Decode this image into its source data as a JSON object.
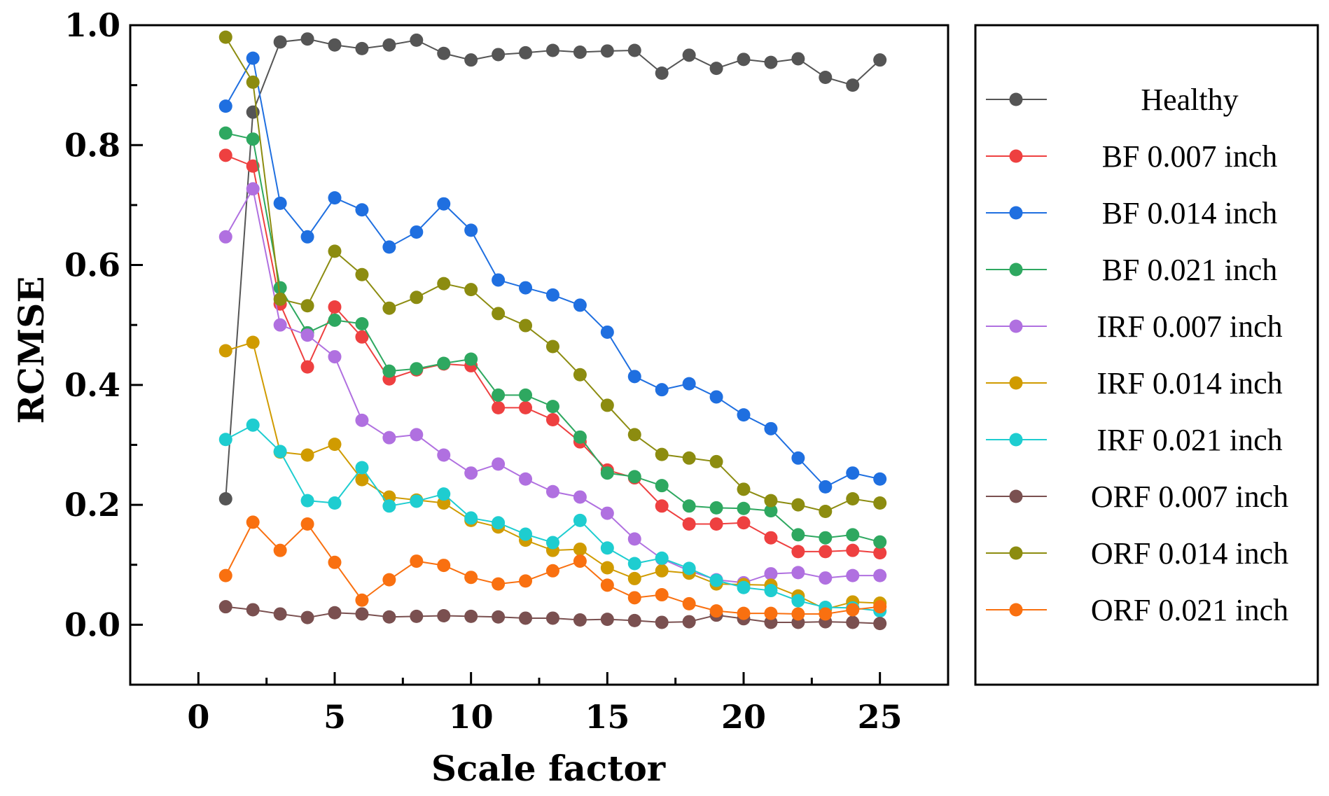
{
  "chart_data": {
    "type": "line",
    "title": "",
    "xlabel": "Scale factor",
    "ylabel": "RCMSE",
    "xlim": [
      -2.5,
      27.5
    ],
    "ylim": [
      -0.1,
      1.0
    ],
    "xticks": [
      0,
      5,
      10,
      15,
      20,
      25
    ],
    "yticks": [
      0.0,
      0.2,
      0.4,
      0.6,
      0.8,
      1.0
    ],
    "xtick_labels": [
      "0",
      "5",
      "10",
      "15",
      "20",
      "25"
    ],
    "ytick_labels": [
      "0.0",
      "0.2",
      "0.4",
      "0.6",
      "0.8",
      "1.0"
    ],
    "legend_position": "right",
    "grid": false,
    "x": [
      1,
      2,
      3,
      4,
      5,
      6,
      7,
      8,
      9,
      10,
      11,
      12,
      13,
      14,
      15,
      16,
      17,
      18,
      19,
      20,
      21,
      22,
      23,
      24,
      25
    ],
    "series": [
      {
        "name": "Healthy",
        "color": "#555555",
        "values": [
          0.21,
          0.855,
          0.972,
          0.977,
          0.967,
          0.961,
          0.967,
          0.975,
          0.953,
          0.942,
          0.951,
          0.954,
          0.958,
          0.955,
          0.957,
          0.958,
          0.92,
          0.95,
          0.928,
          0.943,
          0.938,
          0.944,
          0.913,
          0.9,
          0.942
        ]
      },
      {
        "name": "BF 0.007 inch",
        "color": "#ee4040",
        "values": [
          0.783,
          0.765,
          0.535,
          0.43,
          0.53,
          0.48,
          0.41,
          0.425,
          0.435,
          0.432,
          0.362,
          0.362,
          0.342,
          0.305,
          0.258,
          0.245,
          0.198,
          0.168,
          0.168,
          0.17,
          0.145,
          0.122,
          0.122,
          0.124,
          0.12
        ]
      },
      {
        "name": "BF 0.014 inch",
        "color": "#1f6fe0",
        "values": [
          0.865,
          0.945,
          0.703,
          0.647,
          0.712,
          0.692,
          0.63,
          0.655,
          0.702,
          0.658,
          0.575,
          0.562,
          0.55,
          0.533,
          0.488,
          0.414,
          0.392,
          0.402,
          0.38,
          0.35,
          0.327,
          0.278,
          0.23,
          0.253,
          0.243
        ]
      },
      {
        "name": "BF 0.021 inch",
        "color": "#2ea860",
        "values": [
          0.82,
          0.81,
          0.562,
          0.487,
          0.508,
          0.502,
          0.423,
          0.427,
          0.436,
          0.443,
          0.383,
          0.383,
          0.364,
          0.313,
          0.253,
          0.247,
          0.232,
          0.198,
          0.195,
          0.194,
          0.19,
          0.15,
          0.145,
          0.15,
          0.138
        ]
      },
      {
        "name": "IRF 0.007 inch",
        "color": "#b070e0",
        "values": [
          0.647,
          0.727,
          0.5,
          0.483,
          0.447,
          0.341,
          0.312,
          0.317,
          0.283,
          0.253,
          0.268,
          0.243,
          0.222,
          0.213,
          0.186,
          0.143,
          0.11,
          0.09,
          0.075,
          0.07,
          0.085,
          0.087,
          0.078,
          0.082,
          0.082
        ]
      },
      {
        "name": "IRF 0.014 inch",
        "color": "#d09b00",
        "values": [
          0.457,
          0.471,
          0.288,
          0.283,
          0.301,
          0.242,
          0.213,
          0.208,
          0.203,
          0.174,
          0.163,
          0.141,
          0.124,
          0.126,
          0.095,
          0.077,
          0.09,
          0.086,
          0.068,
          0.067,
          0.066,
          0.048,
          0.026,
          0.038,
          0.036
        ]
      },
      {
        "name": "IRF 0.021 inch",
        "color": "#1ecdd0",
        "values": [
          0.309,
          0.333,
          0.289,
          0.207,
          0.203,
          0.262,
          0.198,
          0.206,
          0.218,
          0.178,
          0.17,
          0.151,
          0.137,
          0.174,
          0.128,
          0.102,
          0.111,
          0.094,
          0.074,
          0.062,
          0.057,
          0.04,
          0.029,
          0.028,
          0.023
        ]
      },
      {
        "name": "ORF 0.007 inch",
        "color": "#7a5050",
        "values": [
          0.03,
          0.025,
          0.018,
          0.012,
          0.02,
          0.018,
          0.013,
          0.014,
          0.015,
          0.014,
          0.013,
          0.011,
          0.011,
          0.008,
          0.009,
          0.007,
          0.004,
          0.005,
          0.016,
          0.01,
          0.004,
          0.004,
          0.005,
          0.004,
          0.002
        ]
      },
      {
        "name": "ORF 0.014 inch",
        "color": "#8c8c10",
        "values": [
          0.98,
          0.905,
          0.543,
          0.532,
          0.623,
          0.584,
          0.528,
          0.546,
          0.569,
          0.559,
          0.519,
          0.499,
          0.464,
          0.417,
          0.366,
          0.317,
          0.284,
          0.278,
          0.272,
          0.226,
          0.207,
          0.2,
          0.189,
          0.21,
          0.203
        ]
      },
      {
        "name": "ORF 0.021 inch",
        "color": "#f97010",
        "values": [
          0.082,
          0.171,
          0.124,
          0.168,
          0.104,
          0.041,
          0.075,
          0.106,
          0.099,
          0.079,
          0.068,
          0.073,
          0.09,
          0.106,
          0.066,
          0.045,
          0.05,
          0.035,
          0.023,
          0.019,
          0.019,
          0.018,
          0.018,
          0.025,
          0.03
        ]
      }
    ]
  }
}
